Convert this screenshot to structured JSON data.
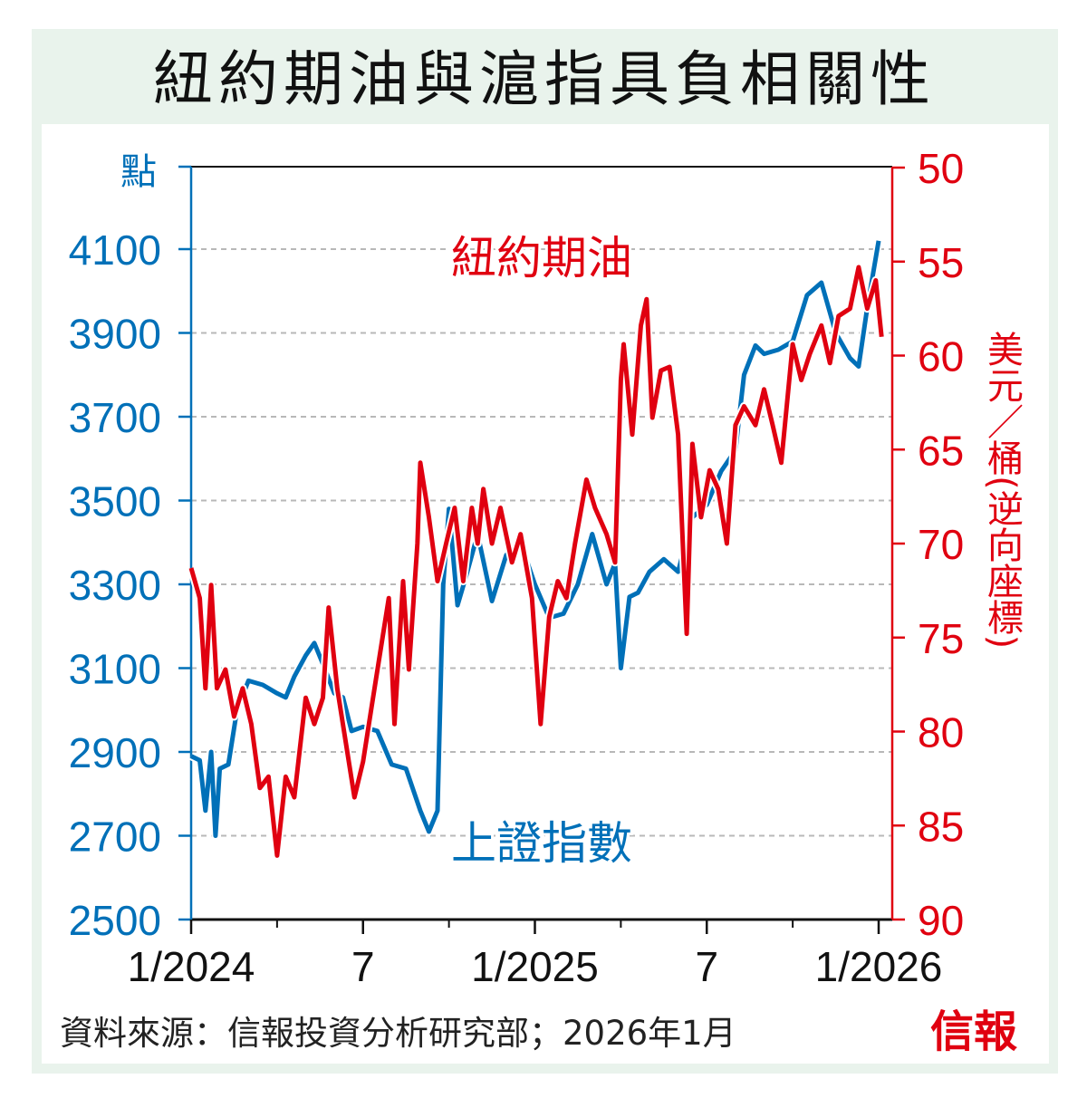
{
  "chart_data": {
    "type": "line",
    "title": "紐約期油與滬指具負相關性",
    "left_axis": {
      "label": "點",
      "ticks": [
        2500,
        2700,
        2900,
        3100,
        3300,
        3500,
        3700,
        3900,
        4100
      ],
      "range": [
        2500,
        4300
      ],
      "color": "#0070b8"
    },
    "right_axis": {
      "label": "美元／桶(逆向座標)",
      "ticks": [
        50,
        55,
        60,
        65,
        70,
        75,
        80,
        85,
        90
      ],
      "range": [
        50,
        90
      ],
      "inverted": true,
      "color": "#e00010"
    },
    "x_axis": {
      "ticks": [
        {
          "m": 0,
          "label": "1/2024"
        },
        {
          "m": 6,
          "label": "7"
        },
        {
          "m": 12,
          "label": "1/2025"
        },
        {
          "m": 18,
          "label": "7"
        },
        {
          "m": 24,
          "label": "1/2026"
        }
      ],
      "minor_ticks": [
        3,
        9,
        15,
        21
      ],
      "unit": "months since Jan 2024"
    },
    "grid": true,
    "series": [
      {
        "name": "上證指數",
        "axis": "left",
        "color": "#0070b8",
        "x": [
          0,
          0.3,
          0.5,
          0.7,
          0.85,
          1.0,
          1.3,
          1.6,
          2,
          2.5,
          3,
          3.3,
          3.6,
          4,
          4.3,
          4.6,
          5,
          5.3,
          5.6,
          6,
          6.5,
          7,
          7.5,
          8,
          8.3,
          8.6,
          8.8,
          9,
          9.3,
          9.6,
          10,
          10.5,
          11,
          11.5,
          12,
          12.5,
          13,
          13.5,
          14,
          14.5,
          14.8,
          15,
          15.3,
          15.6,
          16,
          16.5,
          17,
          17.5,
          18,
          18.5,
          19,
          19.3,
          19.7,
          20,
          20.5,
          21,
          21.5,
          22,
          22.5,
          23,
          23.3,
          23.6,
          24
        ],
        "y": [
          2890,
          2880,
          2760,
          2900,
          2700,
          2860,
          2870,
          3000,
          3070,
          3060,
          3040,
          3030,
          3080,
          3130,
          3160,
          3110,
          3040,
          3030,
          2950,
          2960,
          2950,
          2870,
          2860,
          2760,
          2710,
          2760,
          3300,
          3480,
          3250,
          3320,
          3420,
          3260,
          3370,
          3400,
          3300,
          3220,
          3230,
          3300,
          3420,
          3300,
          3350,
          3100,
          3270,
          3280,
          3330,
          3360,
          3330,
          3460,
          3490,
          3570,
          3620,
          3800,
          3870,
          3850,
          3860,
          3880,
          3990,
          4020,
          3900,
          3840,
          3820,
          3960,
          4120
        ]
      },
      {
        "name": "紐約期油",
        "axis": "right",
        "color": "#e00010",
        "x": [
          0,
          0.3,
          0.5,
          0.7,
          0.9,
          1.2,
          1.5,
          1.8,
          2.1,
          2.4,
          2.7,
          3,
          3.3,
          3.6,
          4,
          4.3,
          4.6,
          4.8,
          5.1,
          5.4,
          5.7,
          6,
          6.3,
          6.6,
          6.9,
          7.1,
          7.4,
          7.6,
          7.9,
          8.0,
          8.3,
          8.6,
          8.9,
          9.2,
          9.5,
          9.8,
          10,
          10.2,
          10.5,
          10.8,
          11.2,
          11.5,
          11.9,
          12.2,
          12.5,
          12.8,
          13.1,
          13.4,
          13.8,
          14.1,
          14.5,
          14.8,
          15,
          15.1,
          15.4,
          15.7,
          15.9,
          16.1,
          16.4,
          16.7,
          17,
          17.3,
          17.5,
          17.8,
          18.1,
          18.4,
          18.7,
          19,
          19.3,
          19.7,
          20,
          20.3,
          20.6,
          21,
          21.3,
          21.6,
          22,
          22.3,
          22.6,
          23,
          23.3,
          23.6,
          23.9,
          24.1
        ],
        "y": [
          71.3,
          72.9,
          77.7,
          72.2,
          77.7,
          76.7,
          79.2,
          77.7,
          79.6,
          83,
          82.4,
          86.6,
          82.4,
          83.5,
          78.2,
          79.6,
          78.2,
          73.4,
          77.7,
          80.6,
          83.5,
          81.6,
          78.7,
          75.8,
          72.9,
          79.6,
          72,
          76.7,
          70,
          65.7,
          68.6,
          72,
          70,
          68.1,
          72,
          68.1,
          70,
          67.1,
          70,
          68.1,
          71,
          69.5,
          72.9,
          79.6,
          73.9,
          72,
          72.9,
          70,
          66.6,
          68.1,
          69.5,
          71,
          61.3,
          59.4,
          64.2,
          58.4,
          57,
          63.3,
          60.8,
          60.6,
          64.2,
          74.8,
          64.7,
          68.6,
          66.1,
          67.1,
          70,
          63.7,
          62.7,
          63.7,
          61.8,
          63.7,
          65.7,
          59.4,
          61.3,
          59.9,
          58.4,
          60.4,
          57.9,
          57.5,
          55.3,
          57.5,
          56,
          59
        ]
      }
    ],
    "annotations": [
      "紐約期油",
      "上證指數"
    ],
    "source": "資料來源：信報投資分析研究部；2026年1月",
    "logo": "信報"
  }
}
